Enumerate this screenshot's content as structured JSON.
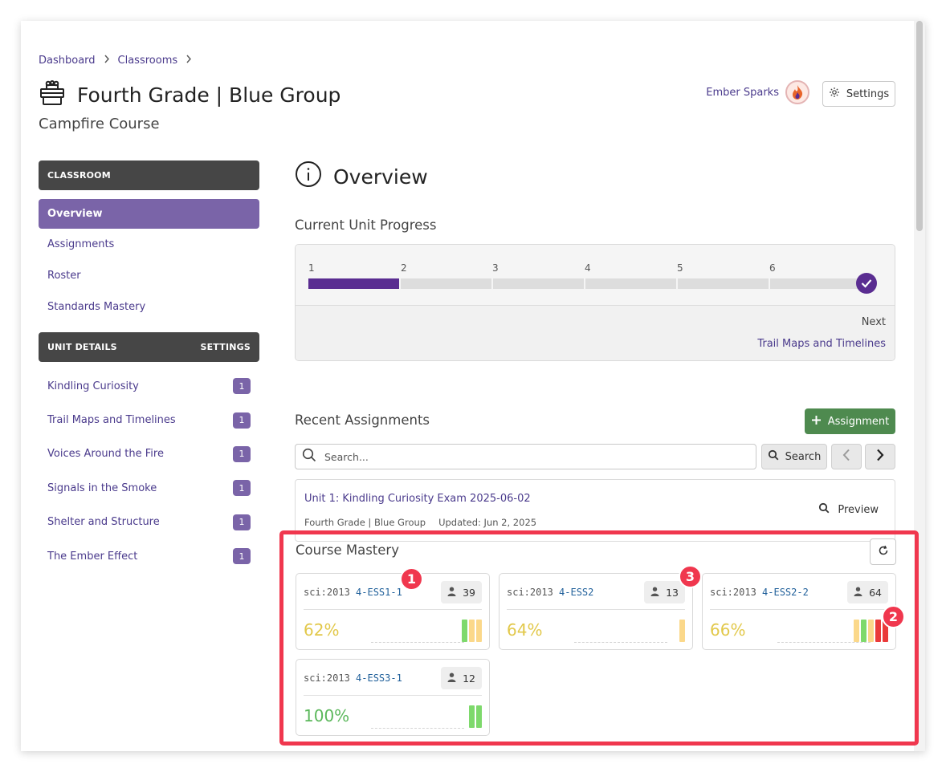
{
  "breadcrumb": [
    "Dashboard",
    "Classrooms"
  ],
  "header": {
    "title": "Fourth Grade | Blue Group",
    "subtitle": "Campfire Course",
    "user_name": "Ember Sparks",
    "settings_label": "Settings"
  },
  "sidebar": {
    "classroom_header": "CLASSROOM",
    "items": [
      "Overview",
      "Assignments",
      "Roster",
      "Standards Mastery"
    ],
    "active": "Overview",
    "unit_header": "UNIT DETAILS",
    "unit_settings": "SETTINGS",
    "units": [
      {
        "label": "Kindling Curiosity",
        "count": "1"
      },
      {
        "label": "Trail Maps and Timelines",
        "count": "1"
      },
      {
        "label": "Voices Around the Fire",
        "count": "1"
      },
      {
        "label": "Signals in the Smoke",
        "count": "1"
      },
      {
        "label": "Shelter and Structure",
        "count": "1"
      },
      {
        "label": "The Ember Effect",
        "count": "1"
      }
    ]
  },
  "main": {
    "title": "Overview",
    "progress": {
      "label": "Current Unit Progress",
      "steps": [
        "1",
        "2",
        "3",
        "4",
        "5",
        "6"
      ],
      "completed_fraction": 0.17,
      "next_label": "Next",
      "next_unit": "Trail Maps and Timelines"
    },
    "recent": {
      "label": "Recent Assignments",
      "add_button": "Assignment",
      "search_placeholder": "Search...",
      "search_button": "Search",
      "assignment": {
        "title": "Unit 1: Kindling Curiosity Exam 2025-06-02",
        "group": "Fourth Grade | Blue Group",
        "updated": "Updated: Jun 2, 2025",
        "preview_label": "Preview"
      }
    },
    "mastery": {
      "label": "Course Mastery",
      "cards": [
        {
          "prefix": "sci:2013",
          "code": "4-ESS1-1",
          "count": "39",
          "percent": "62%",
          "percent_color": "#e2c84a",
          "bars": [
            "#7ed96c",
            "#fbd88a",
            "#fbd88a"
          ]
        },
        {
          "prefix": "sci:2013",
          "code": "4-ESS2",
          "count": "13",
          "percent": "64%",
          "percent_color": "#e2c84a",
          "bars": [
            "#fbd88a"
          ]
        },
        {
          "prefix": "sci:2013",
          "code": "4-ESS2-2",
          "count": "64",
          "percent": "66%",
          "percent_color": "#e2c84a",
          "bars": [
            "#fbd88a",
            "#7ed96c",
            "#fbd88a",
            "#ea3b3b",
            "#ea3b3b"
          ]
        },
        {
          "prefix": "sci:2013",
          "code": "4-ESS3-1",
          "count": "12",
          "percent": "100%",
          "percent_color": "#5cb85c",
          "bars": [
            "#7ed96c",
            "#7ed96c"
          ]
        }
      ]
    }
  },
  "annotations": [
    "1",
    "2",
    "3"
  ],
  "colors": {
    "accent": "#7a64a8",
    "highlight": "#f0374e",
    "primary_dark": "#5a2d91",
    "success": "#4e8a4f"
  }
}
